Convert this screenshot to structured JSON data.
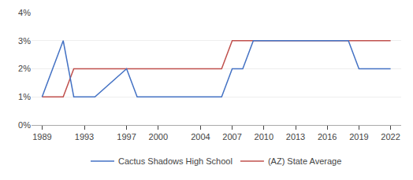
{
  "chart_data": {
    "type": "line",
    "series": [
      {
        "name": "(AZ) State Average",
        "color": "#c0504d",
        "x": [
          1989,
          1991,
          1992,
          2006,
          2007,
          2008,
          2018,
          2019,
          2022
        ],
        "values": [
          1,
          1,
          2,
          2,
          3,
          3,
          3,
          3,
          3
        ]
      },
      {
        "name": "Cactus Shadows High School",
        "color": "#4472c4",
        "x": [
          1989,
          1991,
          1992,
          1993,
          1994,
          1997,
          1998,
          2005,
          2006,
          2007,
          2008,
          2009,
          2010,
          2018,
          2019,
          2022
        ],
        "values": [
          1,
          3,
          1,
          1,
          1,
          2,
          1,
          1,
          1,
          2,
          2,
          3,
          3,
          3,
          2,
          2
        ]
      }
    ],
    "xlim": [
      1988,
      2023
    ],
    "xticks": [
      1989,
      1993,
      1997,
      2000,
      2004,
      2007,
      2010,
      2013,
      2016,
      2019,
      2022
    ],
    "ylim": [
      0,
      4
    ],
    "yticks": [
      {
        "value": 0,
        "label": "0%"
      },
      {
        "value": 1,
        "label": "1%"
      },
      {
        "value": 2,
        "label": "2%"
      },
      {
        "value": 3,
        "label": "3%"
      },
      {
        "value": 4,
        "label": "4%"
      }
    ],
    "grid": "y",
    "legend": "bottom"
  }
}
